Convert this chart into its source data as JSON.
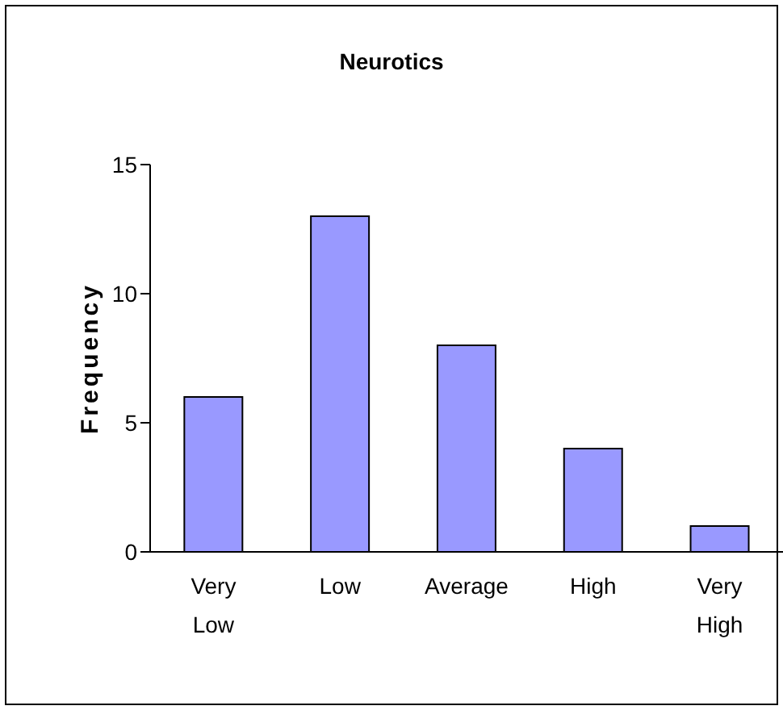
{
  "chart_data": {
    "type": "bar",
    "title": "Neurotics",
    "ylabel": "Frequency",
    "categories": [
      "Very Low",
      "Low",
      "Average",
      "High",
      "Very High"
    ],
    "values": [
      6,
      13,
      8,
      4,
      1
    ],
    "color": "#9999ff",
    "ylim": [
      0,
      15
    ],
    "yticks": [
      0,
      5,
      10,
      15
    ]
  }
}
